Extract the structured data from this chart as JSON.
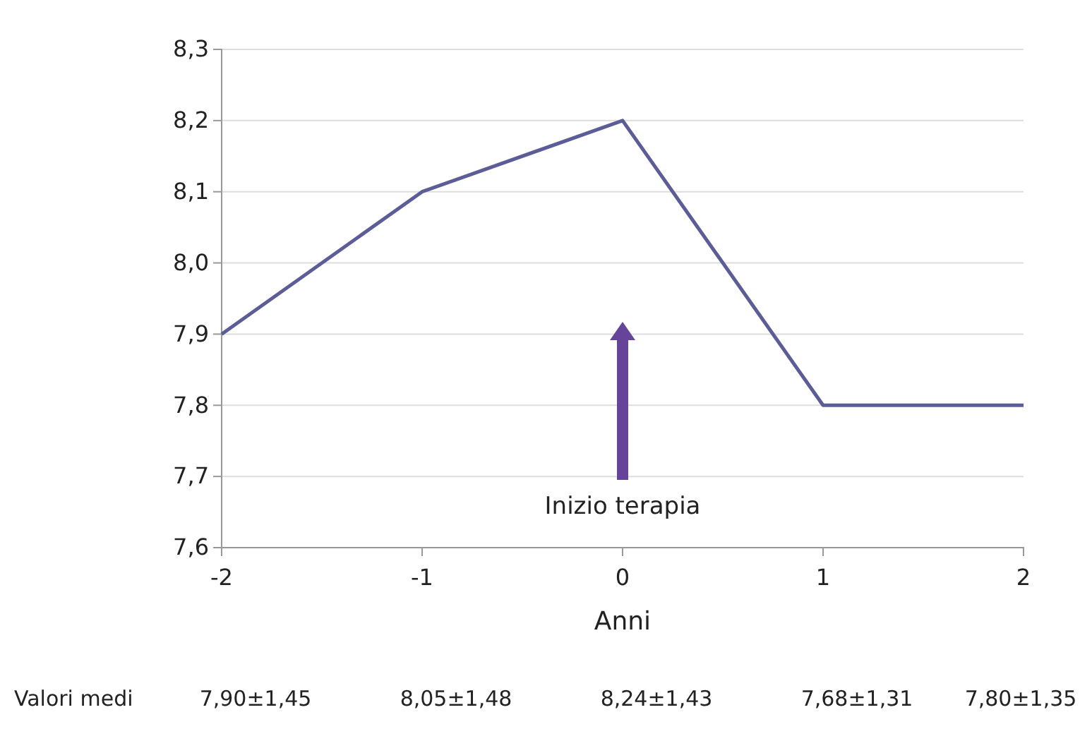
{
  "chart_data": {
    "type": "line",
    "xlabel": "Anni",
    "x": [
      -2,
      -1,
      0,
      1,
      2
    ],
    "series": [
      {
        "color": "#5c5c98",
        "values": [
          7.9,
          8.1,
          8.2,
          7.8,
          7.8
        ]
      }
    ],
    "xlim": [
      -2,
      2
    ],
    "xticks": [
      -2,
      -1,
      0,
      1,
      2
    ],
    "ylim": [
      7.6,
      8.3
    ],
    "yticks": [
      {
        "value": 7.6,
        "label": "7,6"
      },
      {
        "value": 7.7,
        "label": "7,7"
      },
      {
        "value": 7.8,
        "label": "7,8"
      },
      {
        "value": 7.9,
        "label": "7,9"
      },
      {
        "value": 8.0,
        "label": "8,0"
      },
      {
        "value": 8.1,
        "label": "8,1"
      },
      {
        "value": 8.2,
        "label": "8,2"
      },
      {
        "value": 8.3,
        "label": "8,3"
      }
    ],
    "grid": "y",
    "marker": "none",
    "line_style": "solid",
    "annotations": [
      "Inizio terapia",
      "Valori medi",
      "7,90±1,45",
      "8,05±1,48",
      "8,24±1,43",
      "7,68±1,31",
      "7,80±1,35"
    ]
  }
}
